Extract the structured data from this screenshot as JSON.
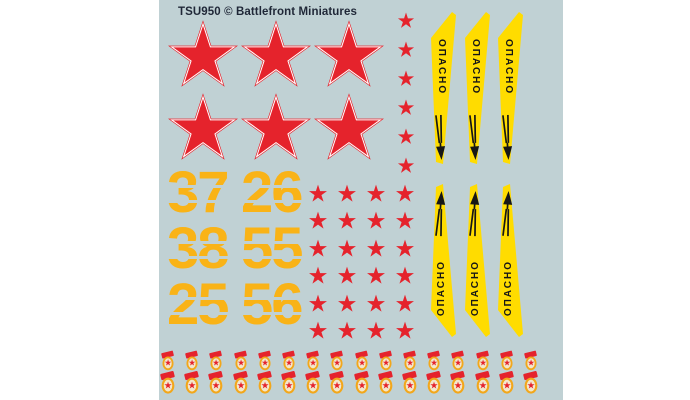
{
  "header": {
    "title": "TSU950 © Battlefront Miniatures"
  },
  "colors": {
    "page_bg": "#ffffff",
    "sheet_bg": "#c0d1d4",
    "red": "#e5232c",
    "white": "#ffffff",
    "stripe_yellow": "#ffdc00",
    "number_amber": "#f9b317",
    "badge_gold": "#f2a71b",
    "badge_cream": "#f3e7cd",
    "black": "#161616",
    "title_color": "#1f2737"
  },
  "large_stars": {
    "rows": 2,
    "cols": 3,
    "count": 6
  },
  "small_star_column": {
    "count": 6
  },
  "small_star_grid": {
    "rows": 6,
    "cols": 4,
    "count": 24
  },
  "stencil_numbers": [
    "37",
    "26",
    "38",
    "55",
    "25",
    "56"
  ],
  "danger_stripes": {
    "label": "ОПАСНО",
    "top_count": 3,
    "bottom_count": 3,
    "top_arrow_direction": "down",
    "bottom_arrow_direction": "up"
  },
  "guards_badges": {
    "rows": 2,
    "per_row": 16,
    "count": 32
  },
  "star_icon": "★"
}
